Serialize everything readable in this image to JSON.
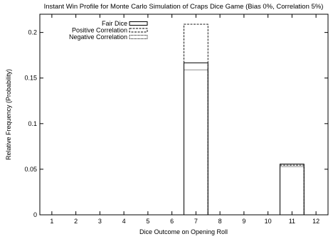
{
  "chart_data": {
    "type": "bar",
    "title": "Instant Win Profile for Monte Carlo Simulation of Craps Dice Game (Bias 0%, Correlation 5%)",
    "xlabel": "Dice Outcome on Opening Roll",
    "ylabel": "Relative Frequency (Probability)",
    "categories": [
      "1",
      "2",
      "3",
      "4",
      "5",
      "6",
      "7",
      "8",
      "9",
      "10",
      "11",
      "12"
    ],
    "xlim": [
      0.5,
      12.5
    ],
    "ylim": [
      0,
      0.22
    ],
    "y_ticks": [
      "0",
      "0.05",
      "0.1",
      "0.15",
      "0.2"
    ],
    "y_tick_values": [
      0,
      0.05,
      0.1,
      0.15,
      0.2
    ],
    "grid": false,
    "legend_position": "top-left",
    "series": [
      {
        "name": "Fair Dice",
        "line_style": "solid",
        "values": [
          0,
          0,
          0,
          0,
          0,
          0,
          0.1667,
          0,
          0,
          0,
          0.0556,
          0
        ]
      },
      {
        "name": "Positive Correlation",
        "line_style": "dashed",
        "values": [
          0,
          0,
          0,
          0,
          0,
          0,
          0.209,
          0,
          0,
          0,
          0.0545,
          0
        ]
      },
      {
        "name": "Negative Correlation",
        "line_style": "dotted",
        "values": [
          0,
          0,
          0,
          0,
          0,
          0,
          0.159,
          0,
          0,
          0,
          0.0528,
          0
        ]
      }
    ]
  }
}
